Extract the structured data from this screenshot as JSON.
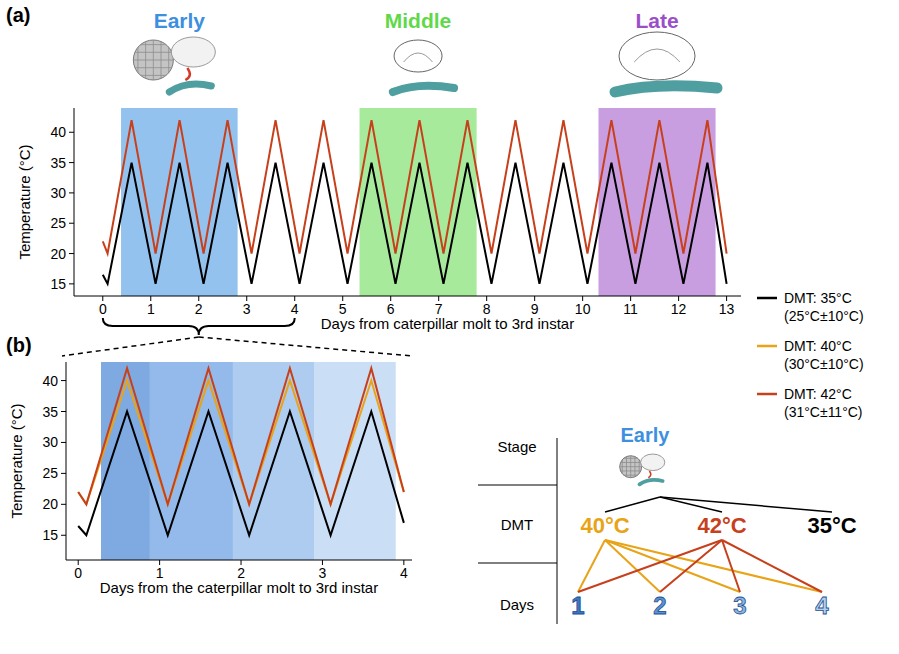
{
  "panels": [
    "(a)",
    "(b)"
  ],
  "chart_data": [
    {
      "type": "line",
      "xlabel": "Days from caterpillar molt to 3rd instar",
      "ylabel": "Temperature (°C)",
      "x": [
        0,
        0.1,
        0.6,
        1.1,
        1.6,
        2.1,
        2.6,
        3.1,
        3.6,
        4.1,
        4.6,
        5.1,
        5.6,
        6.1,
        6.6,
        7.1,
        7.6,
        8.1,
        8.6,
        9.1,
        9.6,
        10.1,
        10.6,
        11.1,
        11.6,
        12.1,
        12.6,
        13
      ],
      "xlim": [
        -0.6,
        13.3
      ],
      "xticks": [
        0,
        1,
        2,
        3,
        4,
        5,
        6,
        7,
        8,
        9,
        10,
        11,
        12,
        13
      ],
      "ylim": [
        13,
        44
      ],
      "yticks": [
        15,
        20,
        25,
        30,
        35,
        40
      ],
      "regions": [
        {
          "label": "Early",
          "start": 0.38,
          "end": 2.81,
          "color": "#3d8fe0"
        },
        {
          "label": "Middle",
          "start": 5.35,
          "end": 7.79,
          "color": "#5fd94a"
        },
        {
          "label": "Late",
          "start": 10.33,
          "end": 12.77,
          "color": "#9a4fc9"
        }
      ],
      "series": [
        {
          "color": "#000000",
          "values": [
            16.5,
            15,
            35,
            15,
            35,
            15,
            35,
            15,
            35,
            15,
            35,
            15,
            35,
            15,
            35,
            15,
            35,
            15,
            35,
            15,
            35,
            15,
            35,
            15,
            35,
            15,
            35,
            15
          ]
        },
        {
          "color": "#c7401c",
          "values": [
            22,
            20,
            42,
            20,
            42,
            20,
            42,
            20,
            42,
            20,
            42,
            20,
            42,
            20,
            42,
            20,
            42,
            20,
            42,
            20,
            42,
            20,
            42,
            20,
            42,
            20,
            42,
            20
          ]
        }
      ]
    },
    {
      "type": "line",
      "xlabel": "Days from the caterpillar molt to 3rd instar",
      "ylabel": "Temperature (°C)",
      "x": [
        0,
        0.1,
        0.6,
        1.1,
        1.6,
        2.1,
        2.6,
        3.1,
        3.6,
        4
      ],
      "xlim": [
        -0.15,
        4.1
      ],
      "xticks": [
        0,
        1,
        2,
        3,
        4
      ],
      "ylim": [
        11,
        43
      ],
      "yticks": [
        15,
        20,
        25,
        30,
        35,
        40
      ],
      "legend": "right",
      "regions": [
        {
          "start": 0.28,
          "end": 0.88,
          "color": "#1565c8"
        },
        {
          "start": 0.88,
          "end": 1.9,
          "color": "#3a82d8"
        },
        {
          "start": 1.9,
          "end": 2.9,
          "color": "#6aa2e2"
        },
        {
          "start": 2.9,
          "end": 3.9,
          "color": "#9fc3ee"
        }
      ],
      "series": [
        {
          "name": "DMT: 35°C (25°C±10°C)",
          "color": "#000000",
          "values": [
            16.5,
            15,
            35,
            15,
            35,
            15,
            35,
            15,
            35,
            17
          ]
        },
        {
          "name": "DMT: 40°C (30°C±10°C)",
          "color": "#e8a317",
          "values": [
            22,
            20,
            40,
            20,
            40,
            20,
            40,
            20,
            40,
            22
          ]
        },
        {
          "name": "DMT: 42°C (31°C±11°C)",
          "color": "#c7401c",
          "values": [
            22,
            20,
            42,
            20,
            42,
            20,
            42,
            20,
            42,
            22
          ]
        }
      ]
    }
  ],
  "diagram": {
    "rows": [
      "Stage",
      "DMT",
      "Days"
    ],
    "stage": {
      "label": "Early",
      "color": "#3d8fe0"
    },
    "dmts": [
      {
        "label": "40°C",
        "color": "#e8a317",
        "days": [
          0,
          1,
          2,
          3
        ]
      },
      {
        "label": "42°C",
        "color": "#c7401c",
        "days": [
          0,
          1,
          2,
          3
        ]
      },
      {
        "label": "35°C",
        "color": "#000000",
        "days": []
      }
    ],
    "days": [
      {
        "label": "1",
        "color": "#3a78c4"
      },
      {
        "label": "2",
        "color": "#5b93d0"
      },
      {
        "label": "3",
        "color": "#8db3de"
      },
      {
        "label": "4",
        "color": "#b3cfec"
      }
    ]
  }
}
